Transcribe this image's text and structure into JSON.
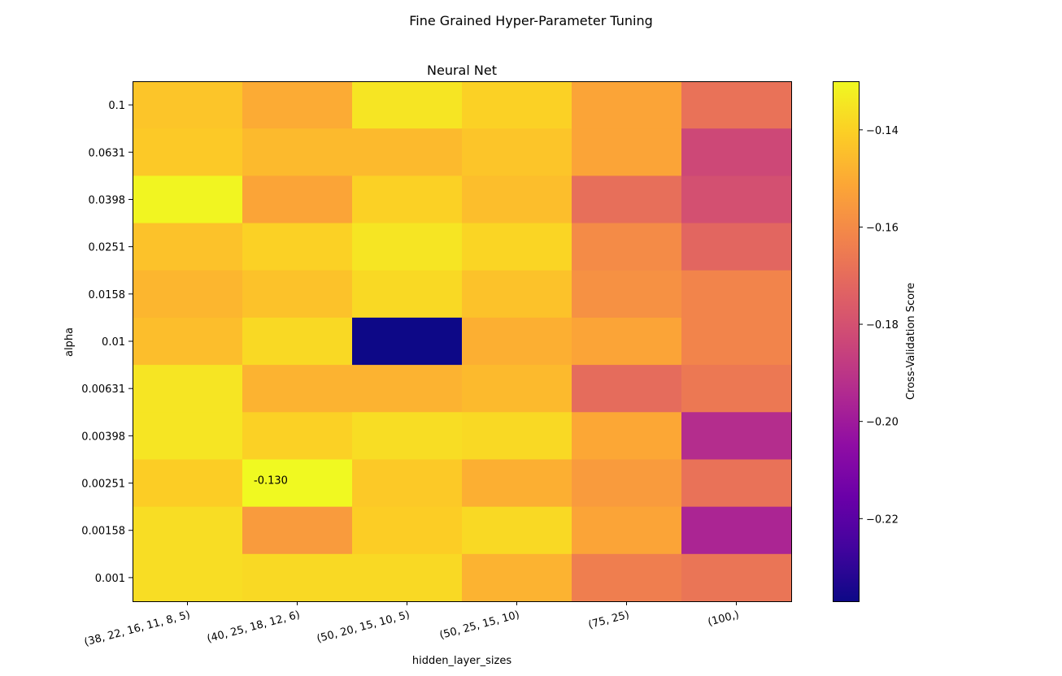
{
  "chart_data": {
    "type": "heatmap",
    "suptitle": "Fine Grained Hyper-Parameter Tuning",
    "title": "Neural Net",
    "xlabel": "hidden_layer_sizes",
    "ylabel": "alpha",
    "colormap": "plasma",
    "x_categories": [
      "(38, 22, 16, 11, 8, 5)",
      "(40, 25, 18, 12, 6)",
      "(50, 20, 15, 10, 5)",
      "(50, 25, 15, 10)",
      "(75, 25)",
      "(100,)"
    ],
    "y_categories": [
      "0.1",
      "0.0631",
      "0.0398",
      "0.0251",
      "0.0158",
      "0.01",
      "0.00631",
      "0.00398",
      "0.00251",
      "0.00158",
      "0.001"
    ],
    "values": [
      [
        -0.143,
        -0.15,
        -0.135,
        -0.14,
        -0.152,
        -0.168
      ],
      [
        -0.142,
        -0.146,
        -0.146,
        -0.143,
        -0.152,
        -0.183
      ],
      [
        -0.131,
        -0.152,
        -0.14,
        -0.145,
        -0.169,
        -0.18
      ],
      [
        -0.144,
        -0.14,
        -0.135,
        -0.139,
        -0.16,
        -0.172
      ],
      [
        -0.147,
        -0.144,
        -0.138,
        -0.144,
        -0.158,
        -0.162
      ],
      [
        -0.145,
        -0.138,
        -0.237,
        -0.149,
        -0.152,
        -0.162
      ],
      [
        -0.135,
        -0.148,
        -0.148,
        -0.146,
        -0.17,
        -0.166
      ],
      [
        -0.135,
        -0.14,
        -0.137,
        -0.138,
        -0.151,
        -0.193
      ],
      [
        -0.141,
        -0.13,
        -0.142,
        -0.149,
        -0.155,
        -0.168
      ],
      [
        -0.137,
        -0.155,
        -0.141,
        -0.138,
        -0.152,
        -0.196
      ],
      [
        -0.137,
        -0.138,
        -0.138,
        -0.148,
        -0.164,
        -0.167
      ]
    ],
    "vmin": -0.237,
    "vmax": -0.13,
    "colorbar": {
      "label": "Cross-Validation Score",
      "ticks": [
        -0.14,
        -0.16,
        -0.18,
        -0.2,
        -0.22
      ],
      "tick_labels": [
        "−0.14",
        "−0.16",
        "−0.18",
        "−0.20",
        "−0.22"
      ]
    },
    "annotation": {
      "row": 8,
      "col": 1,
      "text": "-0.130"
    }
  }
}
